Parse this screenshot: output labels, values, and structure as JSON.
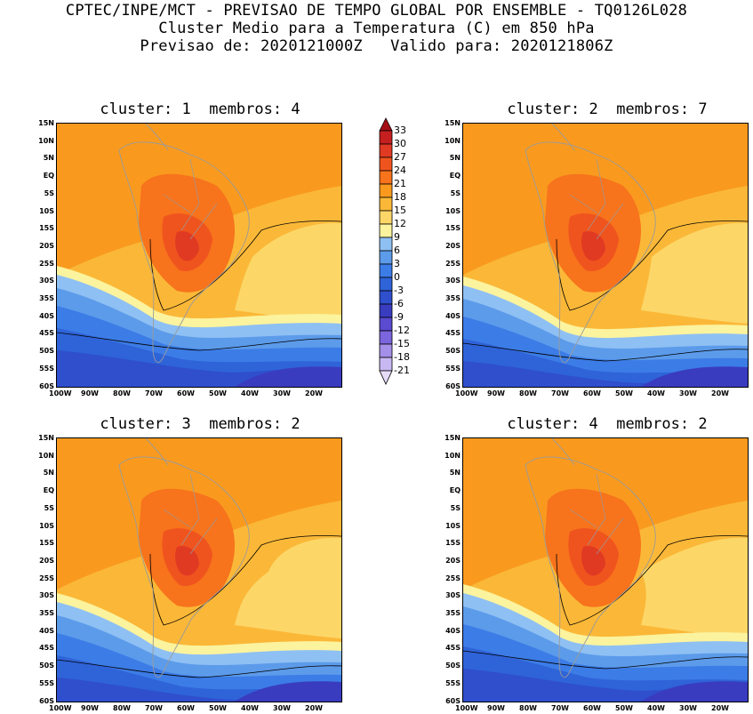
{
  "header": {
    "line1": "CPTEC/INPE/MCT - PREVISAO DE TEMPO GLOBAL POR ENSEMBLE - TQ0126L028",
    "line2": "Cluster Medio para a Temperatura (C) em 850 hPa",
    "line3": "Previsao de: 2020121000Z   Valido para: 2020121806Z"
  },
  "panels": [
    {
      "title": "cluster: 1  membros: 4",
      "contour_labels": [
        "12",
        "12",
        "0"
      ]
    },
    {
      "title": "cluster: 2  membros: 7",
      "contour_labels": [
        "12",
        "0"
      ]
    },
    {
      "title": "cluster: 3  membros: 2",
      "contour_labels": [
        "12",
        "0",
        "0"
      ]
    },
    {
      "title": "cluster: 4  membros: 2",
      "contour_labels": [
        "12",
        "12",
        "12",
        "0",
        "0"
      ]
    }
  ],
  "lat_ticks": [
    "15N",
    "10N",
    "5N",
    "EQ",
    "5S",
    "10S",
    "15S",
    "20S",
    "25S",
    "30S",
    "35S",
    "40S",
    "45S",
    "50S",
    "55S",
    "60S"
  ],
  "lon_ticks": [
    "100W",
    "90W",
    "80W",
    "70W",
    "60W",
    "50W",
    "40W",
    "30W",
    "20W"
  ],
  "colorbar": {
    "labels": [
      "33",
      "30",
      "27",
      "24",
      "21",
      "18",
      "15",
      "12",
      "9",
      "6",
      "3",
      "0",
      "-3",
      "-6",
      "-9",
      "-12",
      "-15",
      "-18",
      "-21"
    ],
    "colors": [
      "#a50d15",
      "#c51f1f",
      "#e03a23",
      "#f0541e",
      "#f7731c",
      "#f99a1f",
      "#fbb838",
      "#fcd768",
      "#fbf39e",
      "#8fc0f3",
      "#5c9bea",
      "#3c7ce6",
      "#2f63d8",
      "#2f4fcc",
      "#3a3cc0",
      "#5a4bd0",
      "#7b66dd",
      "#a490e8",
      "#c8b8f2",
      "#e6dcf8"
    ]
  }
}
